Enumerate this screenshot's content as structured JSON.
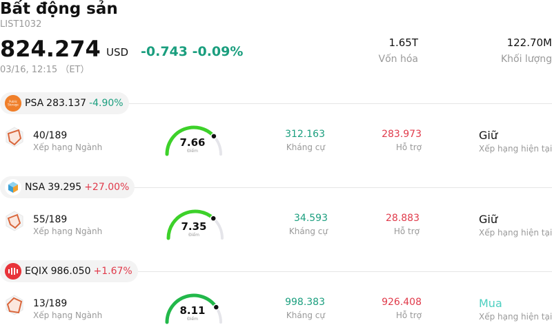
{
  "header": {
    "title": "Bất động sản",
    "code": "LIST1032",
    "price": "824.274",
    "currency": "USD",
    "change": "-0.743 -0.09%",
    "time": "03/16, 12:15 （ET）",
    "market_cap_value": "1.65T",
    "market_cap_label": "Vốn hóa",
    "volume_value": "122.70M",
    "volume_label": "Khối lượng"
  },
  "colors": {
    "positive": "#1a9e7e",
    "negative": "#e03a4a",
    "buy": "#4ccfc0"
  },
  "stocks": [
    {
      "symbol": "PSA",
      "price": "283.137",
      "change_pct": "-4.90%",
      "logo": "public-storage-logo",
      "rank": "40/189",
      "rank_label": "Xếp hạng Ngành",
      "score": "7.66",
      "score_label": "Điểm",
      "score_fraction": 0.766,
      "resistance": "312.163",
      "resistance_label": "Kháng cự",
      "support": "283.973",
      "support_label": "Hỗ trợ",
      "rating": "Giữ",
      "rating_label": "Xếp hạng hiện tại"
    },
    {
      "symbol": "NSA",
      "price": "39.295",
      "change_pct": "+27.00%",
      "logo": "nsa-cube-logo",
      "rank": "55/189",
      "rank_label": "Xếp hạng Ngành",
      "score": "7.35",
      "score_label": "Điểm",
      "score_fraction": 0.735,
      "resistance": "34.593",
      "resistance_label": "Kháng cự",
      "support": "28.883",
      "support_label": "Hỗ trợ",
      "rating": "Giữ",
      "rating_label": "Xếp hạng hiện tại"
    },
    {
      "symbol": "EQIX",
      "price": "986.050",
      "change_pct": "+1.67%",
      "logo": "equinix-logo",
      "rank": "13/189",
      "rank_label": "Xếp hạng Ngành",
      "score": "8.11",
      "score_label": "Điểm",
      "score_fraction": 0.811,
      "resistance": "998.383",
      "resistance_label": "Kháng cự",
      "support": "926.408",
      "support_label": "Hỗ trợ",
      "rating": "Mua",
      "rating_label": "Xếp hạng hiện tại"
    }
  ]
}
